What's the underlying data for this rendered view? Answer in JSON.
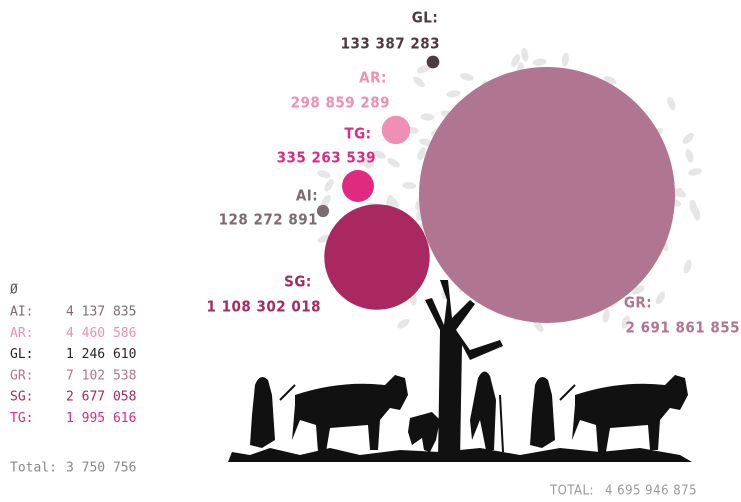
{
  "chart_data": {
    "type": "bubble",
    "bubbles": [
      {
        "name": "GL:",
        "color": "#4d3b42",
        "value": 133387283,
        "value_label": "133 387 283"
      },
      {
        "name": "AR:",
        "color": "#ef8fb4",
        "value": 298859289,
        "value_label": "298 859 289"
      },
      {
        "name": "TG:",
        "color": "#e02a80",
        "value": 335263539,
        "value_label": "335 263 539"
      },
      {
        "name": "AI:",
        "color": "#7d6b72",
        "value": 128272891,
        "value_label": "128 272 891"
      },
      {
        "name": "SG:",
        "color": "#a8285f",
        "value": 1108302018,
        "value_label": "1 108 302 018"
      },
      {
        "name": "GR:",
        "color": "#b07590",
        "value": 2691861855,
        "value_label": "2 691 861 855"
      }
    ],
    "total_label": "TOTAL:",
    "total": 4695946875,
    "total_value_label": "4 695 946 875"
  },
  "legend": {
    "title": "Ø",
    "items": [
      {
        "name": "AI:",
        "color": "#7d6b72",
        "value": 4137835,
        "value_label": "4 137 835"
      },
      {
        "name": "AR:",
        "color": "#ef8fb4",
        "value": 4460586,
        "value_label": "4 460 586"
      },
      {
        "name": "GL:",
        "color": "#2a2226",
        "value": 1246610,
        "value_label": "1 246 610"
      },
      {
        "name": "GR:",
        "color": "#b07590",
        "value": 7102538,
        "value_label": "7 102 538"
      },
      {
        "name": "SG:",
        "color": "#a8285f",
        "value": 2677058,
        "value_label": "2 677 058"
      },
      {
        "name": "TG:",
        "color": "#e02a80",
        "value": 1995616,
        "value_label": "1 995 616"
      }
    ],
    "total_label": "Total:",
    "total": 3750756,
    "total_value_label": "3 750 756"
  }
}
